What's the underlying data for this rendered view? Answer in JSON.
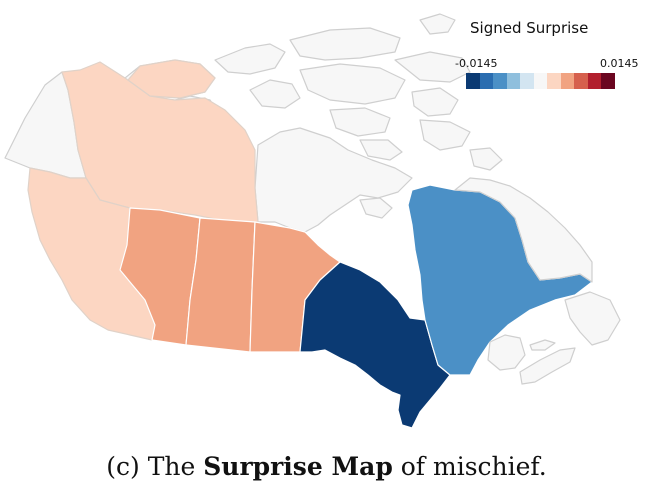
{
  "legend": {
    "title": "Signed Surprise",
    "min_label": "-0.0145",
    "max_label": "0.0145",
    "scale": [
      "#0b3a73",
      "#2a6db0",
      "#4b90c6",
      "#8fbfdd",
      "#d3e5f1",
      "#f7f7f7",
      "#fcd6c2",
      "#f1a381",
      "#d6604d",
      "#b21f2e",
      "#6b0620"
    ]
  },
  "regions": [
    {
      "name": "British Columbia",
      "color": "#fcd6c2"
    },
    {
      "name": "Alberta",
      "color": "#f1a381"
    },
    {
      "name": "Saskatchewan",
      "color": "#f1a381"
    },
    {
      "name": "Manitoba",
      "color": "#f1a381"
    },
    {
      "name": "Ontario",
      "color": "#0b3a73"
    },
    {
      "name": "Quebec",
      "color": "#4b90c6"
    },
    {
      "name": "Yukon",
      "color": "#f7f7f7"
    },
    {
      "name": "Northwest Territories",
      "color": "#fcd6c2"
    },
    {
      "name": "Nunavut",
      "color": "#f7f7f7"
    },
    {
      "name": "Newfoundland and Labrador",
      "color": "#f7f7f7"
    },
    {
      "name": "New Brunswick",
      "color": "#f7f7f7"
    },
    {
      "name": "Nova Scotia",
      "color": "#f7f7f7"
    },
    {
      "name": "Prince Edward Island",
      "color": "#f7f7f7"
    }
  ],
  "caption": {
    "prefix": "(c) The ",
    "bold": "Surprise Map",
    "suffix": " of mischief."
  }
}
